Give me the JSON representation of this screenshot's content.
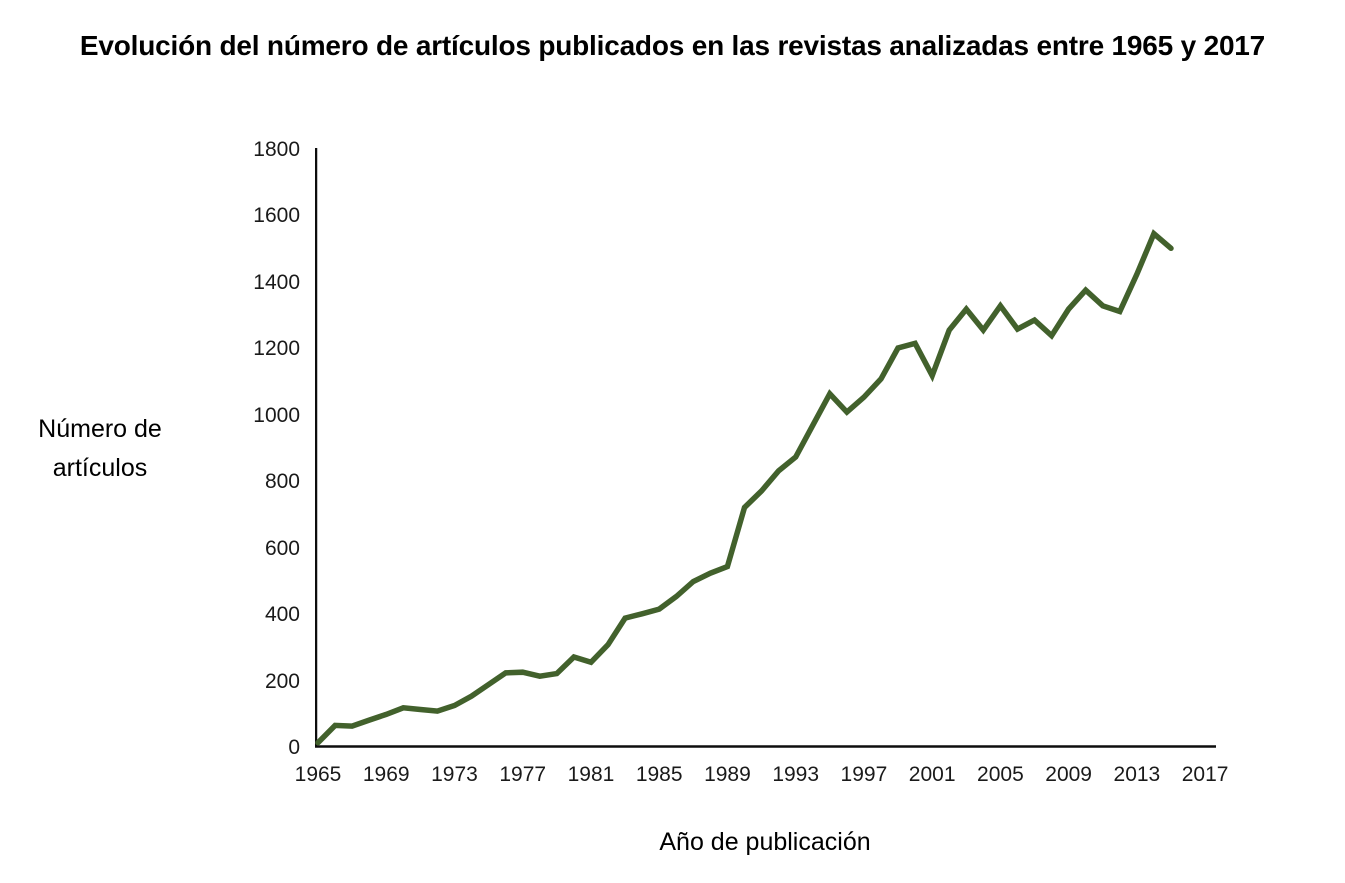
{
  "chart_data": {
    "type": "line",
    "title": "Evolución del número de artículos publicados en las revistas analizadas entre 1965 y 2017",
    "xlabel": "Año de publicación",
    "ylabel": "Número de artículos",
    "ylabel_lines": [
      "Número de",
      "artículos"
    ],
    "series_name": "Número de artículos",
    "x": [
      1965,
      1966,
      1967,
      1968,
      1969,
      1970,
      1971,
      1972,
      1973,
      1974,
      1975,
      1976,
      1977,
      1978,
      1979,
      1980,
      1981,
      1982,
      1983,
      1984,
      1985,
      1986,
      1987,
      1988,
      1989,
      1990,
      1991,
      1992,
      1993,
      1994,
      1995,
      1996,
      1997,
      1998,
      1999,
      2000,
      2001,
      2002,
      2003,
      2004,
      2005,
      2006,
      2007,
      2008,
      2009,
      2010,
      2011,
      2012,
      2013,
      2014,
      2015
    ],
    "values": [
      10,
      62,
      60,
      78,
      95,
      115,
      110,
      105,
      122,
      150,
      185,
      220,
      222,
      210,
      218,
      268,
      252,
      305,
      385,
      398,
      412,
      450,
      495,
      520,
      540,
      718,
      768,
      828,
      870,
      965,
      1060,
      1005,
      1050,
      1105,
      1198,
      1212,
      1115,
      1252,
      1315,
      1252,
      1325,
      1255,
      1282,
      1235,
      1315,
      1372,
      1325,
      1308,
      1420,
      1542,
      1498
    ],
    "ylim": [
      0,
      1800
    ],
    "xlim": [
      1965,
      2017.6
    ],
    "y_ticks": [
      0,
      200,
      400,
      600,
      800,
      1000,
      1200,
      1400,
      1600,
      1800
    ],
    "x_ticks": [
      1965,
      1969,
      1973,
      1977,
      1981,
      1985,
      1989,
      1993,
      1997,
      2001,
      2005,
      2009,
      2013,
      2017
    ],
    "grid": false,
    "legend": "none",
    "line_color": "#42612c",
    "axis_color": "#0d0d0d",
    "background_color": "#ffffff"
  }
}
